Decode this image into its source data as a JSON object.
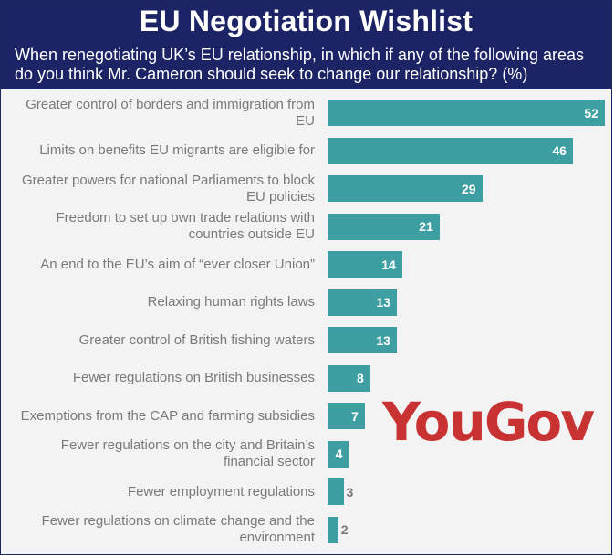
{
  "header": {
    "title": "EU Negotiation Wishlist",
    "subtitle": "When renegotiating UK’s EU relationship, in which if any of the following areas do you think Mr. Cameron should seek to change our relationship? (%)"
  },
  "logo": {
    "text": "YouGov",
    "color": "#c93232"
  },
  "colors": {
    "header_bg": "#1c2466",
    "bar": "#3e9fa3",
    "label": "#7a7a7a",
    "background": "#f3f3f3"
  },
  "chart_data": {
    "type": "bar",
    "orientation": "horizontal",
    "categories": [
      "Greater control of borders and immigration from EU",
      "Limits on benefits EU migrants are eligible for",
      "Greater powers for national Parliaments to block EU policies",
      "Freedom to set up own trade relations with countries outside EU",
      "An end to the EU’s aim of “ever closer Union”",
      "Relaxing human rights laws",
      "Greater control of British fishing waters",
      "Fewer regulations on British businesses",
      "Exemptions from the CAP and farming subsidies",
      "Fewer regulations on the city and Britain’s financial sector",
      "Fewer employment regulations",
      "Fewer regulations on climate change and the environment"
    ],
    "values": [
      52,
      46,
      29,
      21,
      14,
      13,
      13,
      8,
      7,
      4,
      3,
      2
    ],
    "value_labels": [
      "52",
      "46",
      "29",
      "21",
      "14",
      "13",
      "13",
      "8",
      "7",
      "4",
      "3",
      "2"
    ],
    "xlim": [
      0,
      52
    ],
    "grid": false,
    "legend": "none"
  }
}
